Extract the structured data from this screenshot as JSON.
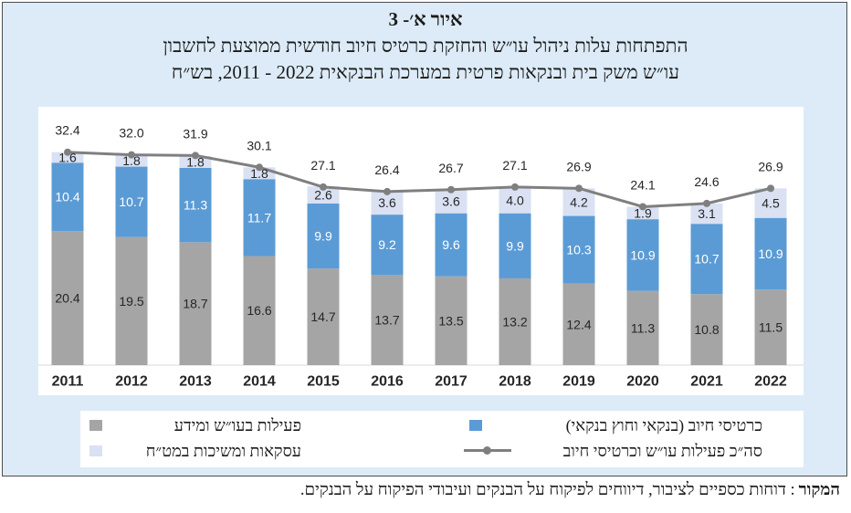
{
  "chart_data": {
    "type": "bar",
    "stacked": true,
    "figure_label": "איור א׳- 3",
    "title_lines": [
      "התפתחות עלות ניהול עו״ש והחזקת כרטיס חיוב חודשית ממוצעת לחשבון",
      "עו״ש משק בית ובנקאות פרטית במערכת הבנקאית 2022 - 2011, בש״ח"
    ],
    "xlabel": "",
    "ylabel": "",
    "categories": [
      "2011",
      "2012",
      "2013",
      "2014",
      "2015",
      "2016",
      "2017",
      "2018",
      "2019",
      "2020",
      "2021",
      "2022"
    ],
    "series": [
      {
        "name": "פעילות בעו״ש ומידע",
        "type": "bar",
        "values": [
          20.4,
          19.5,
          18.7,
          16.6,
          14.7,
          13.7,
          13.5,
          13.2,
          12.4,
          11.3,
          10.8,
          11.5
        ],
        "color": "#a5a5a5",
        "label_color": "#262626"
      },
      {
        "name": "כרטיסי חיוב (בנקאי וחוץ בנקאי)",
        "type": "bar",
        "values": [
          10.4,
          10.7,
          11.3,
          11.7,
          9.9,
          9.2,
          9.6,
          9.9,
          10.3,
          10.9,
          10.7,
          10.9
        ],
        "color": "#5b9bd5",
        "label_color": "#ffffff"
      },
      {
        "name": "עסקאות ומשיכות במט״ח",
        "type": "bar",
        "values": [
          1.6,
          1.8,
          1.8,
          1.8,
          2.6,
          3.6,
          3.6,
          4.0,
          4.2,
          1.9,
          3.1,
          4.5
        ],
        "color": "#d9e1f2",
        "label_color": "#262626"
      },
      {
        "name": "סה״כ פעילות עו״ש וכרטיסי חיוב",
        "type": "line",
        "values": [
          32.4,
          32.0,
          31.9,
          30.1,
          27.1,
          26.4,
          26.7,
          27.1,
          26.9,
          24.1,
          24.6,
          26.9
        ],
        "color": "#7f7f7f",
        "label_color": "#262626"
      }
    ],
    "ylim": [
      0,
      40
    ],
    "y_axis_visible": false,
    "grid": false,
    "data_labels": true,
    "legend_position": "bottom"
  },
  "source": {
    "label": "המקור",
    "text": ": דוחות כספיים לציבור, דיווחים לפיקוח על הבנקים ועיבודי הפיקוח על הבנקים."
  }
}
